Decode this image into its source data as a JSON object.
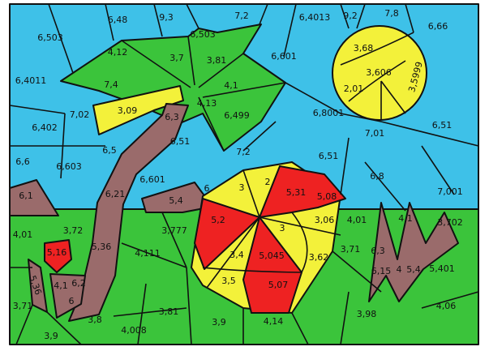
{
  "labels": [
    "6,503",
    "6,48",
    "9,3",
    "6,503",
    "7,2",
    "6,4013",
    "9,2",
    "7,8",
    "6,66",
    "6,601",
    "6,4011",
    "7,02",
    "6,402",
    "6,5",
    "6,6",
    "6,603",
    "6,51",
    "7,2",
    "6,499",
    "6,8001",
    "7,01",
    "6,51",
    "6,51",
    "6,8",
    "7,001",
    "6,601",
    "6,1",
    "4,12",
    "3,7",
    "3,81",
    "4,1",
    "4,13",
    "7,4",
    "3,09",
    "6,3",
    "6,21",
    "5,36",
    "5,4",
    "6",
    "3,68",
    "3,606",
    "2,01",
    "3,5999",
    "3",
    "2",
    "5,31",
    "5,08",
    "5,2",
    "3",
    "3,06",
    "3,4",
    "5,045",
    "3,62",
    "3,5",
    "5,07",
    "4,01",
    "4,1",
    "3,702",
    "3,71",
    "6,3",
    "6,15",
    "4",
    "5,4",
    "5,401",
    "4,06",
    "3,98",
    "4,14",
    "3,9",
    "3,81",
    "4,008",
    "3,8",
    "3,9",
    "3,71",
    "5,36",
    "6",
    "4,1",
    "6,2",
    "5,16",
    "4,01",
    "3,72",
    "4,111",
    "3,777"
  ]
}
